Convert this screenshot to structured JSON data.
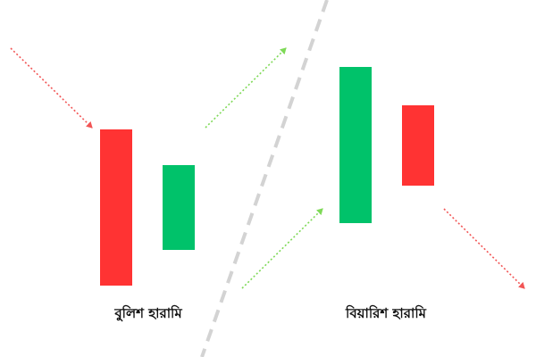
{
  "colors": {
    "bearish": "#FF3333",
    "bullish": "#00C26A",
    "divider": "#D3D3D3",
    "arrow_down": "#F25555",
    "arrow_up": "#7ED957"
  },
  "patterns": [
    {
      "name": "বুলিশ হারামি",
      "candles": [
        {
          "direction": "bearish",
          "color": "#FF3333"
        },
        {
          "direction": "bullish",
          "color": "#00C26A"
        }
      ],
      "prior_trend": "down",
      "following_trend": "up"
    },
    {
      "name": "বিয়ারিশ হারামি",
      "candles": [
        {
          "direction": "bullish",
          "color": "#00C26A"
        },
        {
          "direction": "bearish",
          "color": "#FF3333"
        }
      ],
      "prior_trend": "up",
      "following_trend": "down"
    }
  ]
}
